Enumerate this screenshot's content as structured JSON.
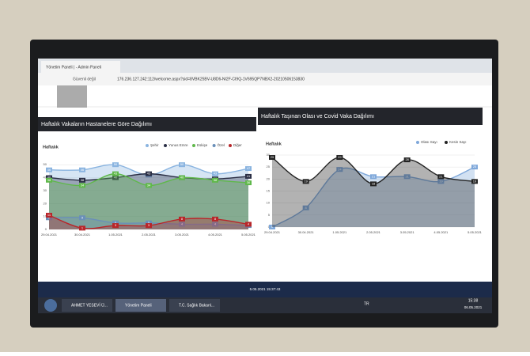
{
  "browser": {
    "tab": "Yönetim Paneli | - Admin Paneli",
    "security": "Güvenli değil",
    "url": "176.236.127.242:112/welcome.aspx?sid=8VBK25BV-U8D6-NI2F-CI9Q-1V695QP7NBX2-20210506153830"
  },
  "chart_data": [
    {
      "type": "area",
      "title": "Haftalık Vakaların Hastanelere Göre Dağılımı",
      "y_label": "Haftalık",
      "legend": "top-right",
      "categories": [
        "29.04.2021",
        "30.04.2021",
        "1.05.2021",
        "2.05.2021",
        "3.05.2021",
        "4.05.2021",
        "5.05.2021"
      ],
      "ylim": [
        0,
        55
      ],
      "yticks": [
        0,
        10,
        20,
        30,
        40,
        50
      ],
      "grid": true,
      "series": [
        {
          "name": "Şehir",
          "color": "#8ab4e0",
          "values": [
            46,
            46,
            50,
            42,
            50,
            43,
            47
          ]
        },
        {
          "name": "Yunus Emre",
          "color": "#2b2f45",
          "values": [
            40,
            38,
            40,
            43,
            40,
            39,
            41
          ]
        },
        {
          "name": "Eskişe",
          "color": "#5fb84a",
          "values": [
            38,
            34,
            43,
            34,
            40,
            38,
            36
          ]
        },
        {
          "name": "Özel",
          "color": "#6a8fb8",
          "values": [
            9,
            9,
            5,
            5,
            4,
            4,
            3
          ]
        },
        {
          "name": "Diğer",
          "color": "#b8262a",
          "values": [
            11,
            1,
            3,
            3,
            8,
            8,
            4
          ]
        }
      ]
    },
    {
      "type": "area",
      "title": "Haftalık Taşınan Olası ve Covid Vaka Dağılımı",
      "y_label": "Haftalık",
      "legend": "top-right",
      "categories": [
        "29.04.2021",
        "30.04.2021",
        "1.05.2021",
        "2.05.2021",
        "3.05.2021",
        "4.05.2021",
        "5.05.2021"
      ],
      "ylim": [
        0,
        30
      ],
      "yticks": [
        0,
        5,
        10,
        15,
        20,
        25,
        30
      ],
      "grid": true,
      "series": [
        {
          "name": "Olası Sayı",
          "color": "#7fa8da",
          "values": [
            0,
            8,
            24,
            21,
            21,
            19,
            25
          ]
        },
        {
          "name": "Kesin Sayı",
          "color": "#222222",
          "values": [
            29,
            19,
            29,
            18,
            28,
            21,
            19
          ]
        }
      ]
    }
  ],
  "status": "5.05.2021 15:37:43",
  "taskbar": {
    "items": [
      "AHMET YESEVİ Ü...",
      "Yönetim Paneli",
      "T.C. Sağlık Bakanl..."
    ],
    "lang": "TR",
    "time": "15:38",
    "date": "06.05.2021"
  }
}
